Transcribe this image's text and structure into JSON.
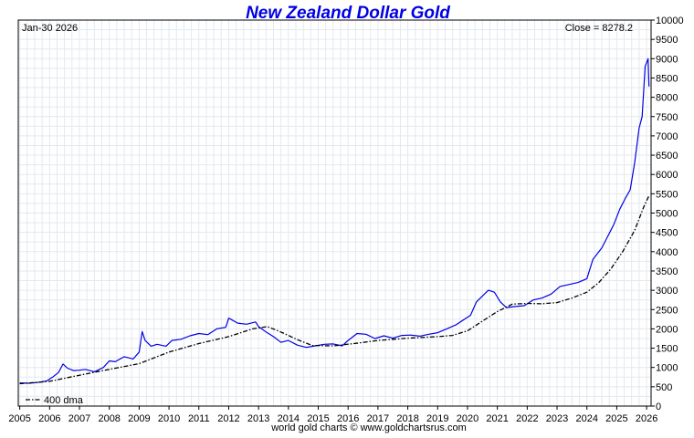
{
  "chart_data": {
    "type": "line",
    "title": "New Zealand Dollar Gold",
    "date_label": "Jan-30  2026",
    "close_label": "Close = 8278.2",
    "legend": {
      "label": "400 dma",
      "placement": "bottom-left"
    },
    "footer": "world gold charts © www.goldchartsrus.com",
    "grid": true,
    "xlim": [
      2004.95,
      2026.15
    ],
    "ylim": [
      0,
      10000
    ],
    "x_ticks": [
      "2005",
      "2006",
      "2007",
      "2008",
      "2009",
      "2010",
      "2011",
      "2012",
      "2013",
      "2014",
      "2015",
      "2016",
      "2017",
      "2018",
      "2019",
      "2020",
      "2021",
      "2022",
      "2023",
      "2024",
      "2025",
      "2026"
    ],
    "y_ticks": [
      "0",
      "500",
      "1000",
      "1500",
      "2000",
      "2500",
      "3000",
      "3500",
      "4000",
      "4500",
      "5000",
      "5500",
      "6000",
      "6500",
      "7000",
      "7500",
      "8000",
      "8500",
      "9000",
      "9500",
      "10000"
    ],
    "colors": {
      "price": "#0000e6",
      "dma": "#000000",
      "title": "#0000e6",
      "grid": "#e3e9ef"
    },
    "series": [
      {
        "name": "",
        "style": "solid",
        "x": [
          2005.0,
          2005.3,
          2005.6,
          2005.9,
          2006.1,
          2006.3,
          2006.45,
          2006.6,
          2006.8,
          2007.0,
          2007.2,
          2007.5,
          2007.8,
          2008.0,
          2008.2,
          2008.5,
          2008.8,
          2009.0,
          2009.1,
          2009.2,
          2009.4,
          2009.6,
          2009.9,
          2010.1,
          2010.4,
          2010.7,
          2011.0,
          2011.3,
          2011.6,
          2011.9,
          2012.0,
          2012.3,
          2012.6,
          2012.9,
          2013.0,
          2013.25,
          2013.5,
          2013.75,
          2014.0,
          2014.3,
          2014.6,
          2014.9,
          2015.2,
          2015.5,
          2015.8,
          2016.0,
          2016.3,
          2016.6,
          2016.9,
          2017.2,
          2017.5,
          2017.8,
          2018.1,
          2018.4,
          2018.7,
          2019.0,
          2019.3,
          2019.6,
          2019.9,
          2020.1,
          2020.3,
          2020.5,
          2020.7,
          2020.9,
          2021.1,
          2021.3,
          2021.6,
          2021.9,
          2022.2,
          2022.5,
          2022.8,
          2023.1,
          2023.4,
          2023.7,
          2024.0,
          2024.2,
          2024.5,
          2024.7,
          2024.9,
          2025.1,
          2025.3,
          2025.45,
          2025.6,
          2025.75,
          2025.85,
          2025.95,
          2026.05,
          2026.08
        ],
        "y": [
          600,
          590,
          610,
          650,
          750,
          870,
          1090,
          980,
          920,
          930,
          950,
          890,
          1000,
          1170,
          1150,
          1280,
          1220,
          1400,
          1930,
          1700,
          1550,
          1600,
          1550,
          1700,
          1730,
          1820,
          1880,
          1850,
          2000,
          2040,
          2280,
          2150,
          2120,
          2180,
          2060,
          1920,
          1800,
          1650,
          1700,
          1580,
          1520,
          1560,
          1600,
          1610,
          1560,
          1700,
          1880,
          1860,
          1750,
          1820,
          1760,
          1830,
          1840,
          1810,
          1860,
          1900,
          2000,
          2100,
          2250,
          2350,
          2700,
          2850,
          3000,
          2950,
          2700,
          2550,
          2580,
          2600,
          2750,
          2800,
          2900,
          3100,
          3150,
          3200,
          3300,
          3800,
          4100,
          4400,
          4700,
          5100,
          5400,
          5600,
          6300,
          7200,
          7500,
          8800,
          9000,
          8278
        ]
      },
      {
        "name": "400 dma",
        "style": "dashed",
        "x": [
          2005.0,
          2006.0,
          2007.0,
          2008.0,
          2009.0,
          2010.0,
          2011.0,
          2012.0,
          2012.8,
          2013.3,
          2013.8,
          2014.3,
          2014.8,
          2015.5,
          2016.2,
          2017.0,
          2018.0,
          2019.0,
          2019.5,
          2020.0,
          2020.5,
          2021.0,
          2021.5,
          2022.0,
          2022.5,
          2023.0,
          2023.5,
          2024.0,
          2024.4,
          2024.8,
          2025.2,
          2025.6,
          2025.9,
          2026.08
        ],
        "y": [
          580,
          640,
          800,
          950,
          1100,
          1400,
          1620,
          1800,
          2000,
          2060,
          1900,
          1720,
          1570,
          1560,
          1620,
          1700,
          1760,
          1800,
          1830,
          1950,
          2200,
          2450,
          2640,
          2660,
          2650,
          2680,
          2800,
          2950,
          3200,
          3550,
          4000,
          4550,
          5150,
          5450
        ]
      }
    ]
  }
}
